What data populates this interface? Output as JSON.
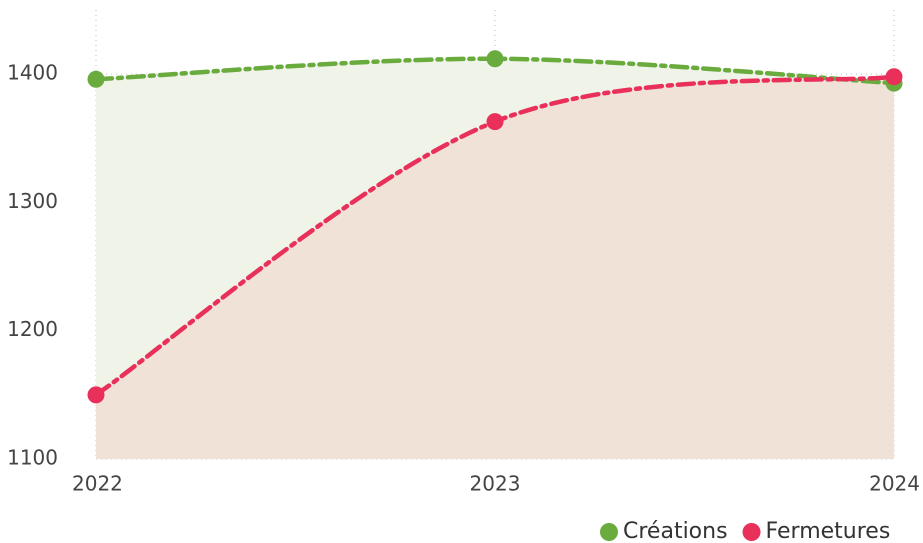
{
  "chart_data": {
    "type": "area",
    "categories": [
      "2022",
      "2023",
      "2024"
    ],
    "series": [
      {
        "name": "Créations",
        "color": "#6aab3e",
        "fill": "#eef2e6",
        "values": [
          1396,
          1412,
          1393
        ]
      },
      {
        "name": "Fermetures",
        "color": "#e8305a",
        "fill": "#efe0d5",
        "values": [
          1150,
          1363,
          1398
        ]
      }
    ],
    "ylim": [
      1100,
      1450
    ],
    "yticks": [
      1100,
      1200,
      1300,
      1400
    ],
    "grid": true,
    "legend": "bottom-right"
  }
}
